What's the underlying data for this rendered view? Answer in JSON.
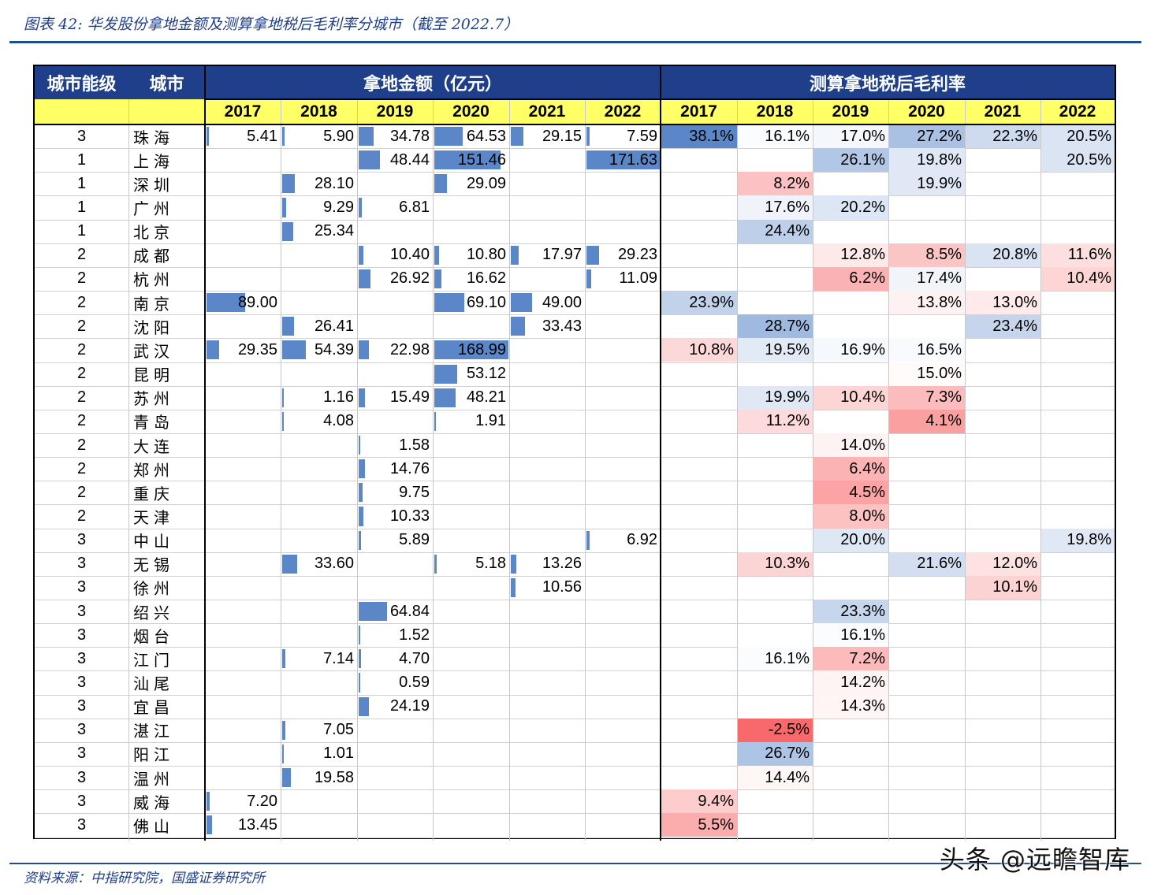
{
  "title": "图表 42:  华发股份拿地金额及测算拿地税后毛利率分城市（截至 2022.7）",
  "source": "资料来源：中指研究院，国盛证券研究所",
  "watermark": "头条 @远瞻智库",
  "header": {
    "tier": "城市能级",
    "city": "城市",
    "amount_group": "拿地金额（亿元）",
    "margin_group": "测算拿地税后毛利率"
  },
  "years": [
    "2017",
    "2018",
    "2019",
    "2020",
    "2021",
    "2022"
  ],
  "colors": {
    "header_blue": "#1f3f8a",
    "header_yellow": "#ffff66",
    "bar": "#5b87c8",
    "high": "#5b87c8",
    "low": "#f8696b"
  },
  "chart_data": {
    "type": "table",
    "amount_unit": "亿元",
    "amount_max": 171.63,
    "margin_range": [
      -2.5,
      38.1
    ],
    "rows": [
      {
        "tier": "3",
        "city": "珠海",
        "amount": [
          "5.41",
          "5.90",
          "34.78",
          "64.53",
          "29.15",
          "7.59"
        ],
        "margin": [
          "38.1%",
          "16.1%",
          "17.0%",
          "27.2%",
          "22.3%",
          "20.5%"
        ]
      },
      {
        "tier": "1",
        "city": "上海",
        "amount": [
          "",
          "",
          "48.44",
          "151.46",
          "",
          "171.63"
        ],
        "margin": [
          "",
          "",
          "26.1%",
          "19.8%",
          "",
          "20.5%"
        ]
      },
      {
        "tier": "1",
        "city": "深圳",
        "amount": [
          "",
          "28.10",
          "",
          "29.09",
          "",
          ""
        ],
        "margin": [
          "",
          "8.2%",
          "",
          "19.9%",
          "",
          ""
        ]
      },
      {
        "tier": "1",
        "city": "广州",
        "amount": [
          "",
          "9.29",
          "6.81",
          "",
          "",
          ""
        ],
        "margin": [
          "",
          "17.6%",
          "20.2%",
          "",
          "",
          ""
        ]
      },
      {
        "tier": "1",
        "city": "北京",
        "amount": [
          "",
          "25.34",
          "",
          "",
          "",
          ""
        ],
        "margin": [
          "",
          "24.4%",
          "",
          "",
          "",
          ""
        ]
      },
      {
        "tier": "2",
        "city": "成都",
        "amount": [
          "",
          "",
          "10.40",
          "10.80",
          "17.97",
          "29.23"
        ],
        "margin": [
          "",
          "",
          "12.8%",
          "8.5%",
          "20.8%",
          "11.6%"
        ]
      },
      {
        "tier": "2",
        "city": "杭州",
        "amount": [
          "",
          "",
          "26.92",
          "16.62",
          "",
          "11.09"
        ],
        "margin": [
          "",
          "",
          "6.2%",
          "17.4%",
          "",
          "10.4%"
        ]
      },
      {
        "tier": "2",
        "city": "南京",
        "amount": [
          "89.00",
          "",
          "",
          "69.10",
          "49.00",
          ""
        ],
        "margin": [
          "23.9%",
          "",
          "",
          "13.8%",
          "13.0%",
          ""
        ]
      },
      {
        "tier": "2",
        "city": "沈阳",
        "amount": [
          "",
          "26.41",
          "",
          "",
          "33.43",
          ""
        ],
        "margin": [
          "",
          "28.7%",
          "",
          "",
          "23.4%",
          ""
        ]
      },
      {
        "tier": "2",
        "city": "武汉",
        "amount": [
          "29.35",
          "54.39",
          "22.98",
          "168.99",
          "",
          ""
        ],
        "margin": [
          "10.8%",
          "19.5%",
          "16.9%",
          "16.5%",
          "",
          ""
        ]
      },
      {
        "tier": "2",
        "city": "昆明",
        "amount": [
          "",
          "",
          "",
          "53.12",
          "",
          ""
        ],
        "margin": [
          "",
          "",
          "",
          "15.0%",
          "",
          ""
        ]
      },
      {
        "tier": "2",
        "city": "苏州",
        "amount": [
          "",
          "1.16",
          "15.49",
          "48.21",
          "",
          ""
        ],
        "margin": [
          "",
          "19.9%",
          "10.4%",
          "7.3%",
          "",
          ""
        ]
      },
      {
        "tier": "2",
        "city": "青岛",
        "amount": [
          "",
          "4.08",
          "",
          "1.91",
          "",
          ""
        ],
        "margin": [
          "",
          "11.2%",
          "",
          "4.1%",
          "",
          ""
        ]
      },
      {
        "tier": "2",
        "city": "大连",
        "amount": [
          "",
          "",
          "1.58",
          "",
          "",
          ""
        ],
        "margin": [
          "",
          "",
          "14.0%",
          "",
          "",
          ""
        ]
      },
      {
        "tier": "2",
        "city": "郑州",
        "amount": [
          "",
          "",
          "14.76",
          "",
          "",
          ""
        ],
        "margin": [
          "",
          "",
          "6.4%",
          "",
          "",
          ""
        ]
      },
      {
        "tier": "2",
        "city": "重庆",
        "amount": [
          "",
          "",
          "9.75",
          "",
          "",
          ""
        ],
        "margin": [
          "",
          "",
          "4.5%",
          "",
          "",
          ""
        ]
      },
      {
        "tier": "2",
        "city": "天津",
        "amount": [
          "",
          "",
          "10.33",
          "",
          "",
          ""
        ],
        "margin": [
          "",
          "",
          "8.0%",
          "",
          "",
          ""
        ]
      },
      {
        "tier": "3",
        "city": "中山",
        "amount": [
          "",
          "",
          "5.89",
          "",
          "",
          "6.92"
        ],
        "margin": [
          "",
          "",
          "20.0%",
          "",
          "",
          "19.8%"
        ]
      },
      {
        "tier": "3",
        "city": "无锡",
        "amount": [
          "",
          "33.60",
          "",
          "5.18",
          "13.26",
          ""
        ],
        "margin": [
          "",
          "10.3%",
          "",
          "21.6%",
          "12.0%",
          ""
        ]
      },
      {
        "tier": "3",
        "city": "徐州",
        "amount": [
          "",
          "",
          "",
          "",
          "10.56",
          ""
        ],
        "margin": [
          "",
          "",
          "",
          "",
          "10.1%",
          ""
        ]
      },
      {
        "tier": "3",
        "city": "绍兴",
        "amount": [
          "",
          "",
          "64.84",
          "",
          "",
          ""
        ],
        "margin": [
          "",
          "",
          "23.3%",
          "",
          "",
          ""
        ]
      },
      {
        "tier": "3",
        "city": "烟台",
        "amount": [
          "",
          "",
          "1.52",
          "",
          "",
          ""
        ],
        "margin": [
          "",
          "",
          "16.1%",
          "",
          "",
          ""
        ]
      },
      {
        "tier": "3",
        "city": "江门",
        "amount": [
          "",
          "7.14",
          "4.70",
          "",
          "",
          ""
        ],
        "margin": [
          "",
          "16.1%",
          "7.2%",
          "",
          "",
          ""
        ]
      },
      {
        "tier": "3",
        "city": "汕尾",
        "amount": [
          "",
          "",
          "0.59",
          "",
          "",
          ""
        ],
        "margin": [
          "",
          "",
          "14.2%",
          "",
          "",
          ""
        ]
      },
      {
        "tier": "3",
        "city": "宜昌",
        "amount": [
          "",
          "",
          "24.19",
          "",
          "",
          ""
        ],
        "margin": [
          "",
          "",
          "14.3%",
          "",
          "",
          ""
        ]
      },
      {
        "tier": "3",
        "city": "湛江",
        "amount": [
          "",
          "7.05",
          "",
          "",
          "",
          ""
        ],
        "margin": [
          "",
          "-2.5%",
          "",
          "",
          "",
          ""
        ]
      },
      {
        "tier": "3",
        "city": "阳江",
        "amount": [
          "",
          "1.01",
          "",
          "",
          "",
          ""
        ],
        "margin": [
          "",
          "26.7%",
          "",
          "",
          "",
          ""
        ]
      },
      {
        "tier": "3",
        "city": "温州",
        "amount": [
          "",
          "19.58",
          "",
          "",
          "",
          ""
        ],
        "margin": [
          "",
          "14.4%",
          "",
          "",
          "",
          ""
        ]
      },
      {
        "tier": "3",
        "city": "威海",
        "amount": [
          "7.20",
          "",
          "",
          "",
          "",
          ""
        ],
        "margin": [
          "9.4%",
          "",
          "",
          "",
          "",
          ""
        ]
      },
      {
        "tier": "3",
        "city": "佛山",
        "amount": [
          "13.45",
          "",
          "",
          "",
          "",
          ""
        ],
        "margin": [
          "5.5%",
          "",
          "",
          "",
          "",
          ""
        ]
      }
    ]
  }
}
